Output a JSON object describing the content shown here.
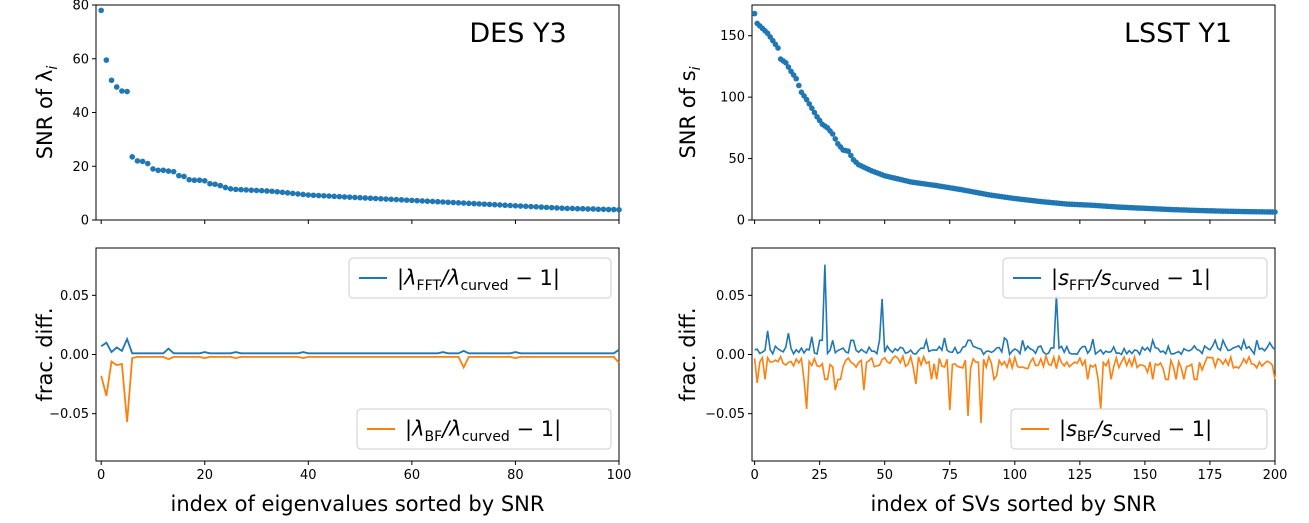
{
  "chart_data": [
    {
      "id": "des_top",
      "type": "scatter",
      "annotation": "DES Y3",
      "ylabel": "SNR of λ",
      "ylabel_sub": "i",
      "xlabel": "",
      "xlim": [
        -1,
        100
      ],
      "ylim": [
        0,
        80
      ],
      "xticks": [
        0,
        20,
        40,
        60,
        80,
        100
      ],
      "xtick_labels_shown": false,
      "yticks": [
        0,
        20,
        40,
        60,
        80
      ],
      "ytick_labels": [
        "0",
        "20",
        "40",
        "60",
        "80"
      ],
      "color": "#1f77b4",
      "series": [
        {
          "values_desc": "see points"
        }
      ],
      "points": [
        [
          0,
          78
        ],
        [
          1,
          59.5
        ],
        [
          2,
          52
        ],
        [
          3,
          49.5
        ],
        [
          4,
          48
        ],
        [
          5,
          47.8
        ],
        [
          6,
          23.5
        ],
        [
          7,
          22
        ],
        [
          8,
          21.8
        ],
        [
          9,
          21
        ],
        [
          10,
          19
        ],
        [
          11,
          18.5
        ],
        [
          12,
          18.5
        ],
        [
          13,
          18.2
        ],
        [
          14,
          18
        ],
        [
          15,
          16.5
        ],
        [
          16,
          16.2
        ],
        [
          17,
          15
        ],
        [
          18,
          14.8
        ],
        [
          19,
          14.8
        ],
        [
          20,
          14.6
        ],
        [
          21,
          13.5
        ],
        [
          22,
          13.3
        ],
        [
          23,
          12.8
        ],
        [
          24,
          12.1
        ],
        [
          25,
          11.6
        ],
        [
          26,
          11.4
        ],
        [
          27,
          11.3
        ],
        [
          28,
          11.2
        ],
        [
          29,
          11.1
        ],
        [
          30,
          11
        ],
        [
          31,
          10.9
        ],
        [
          32,
          10.8
        ],
        [
          33,
          10.7
        ],
        [
          34,
          10.5
        ],
        [
          35,
          10.3
        ],
        [
          36,
          10.1
        ],
        [
          37,
          9.9
        ],
        [
          38,
          9.7
        ],
        [
          39,
          9.5
        ],
        [
          40,
          9.3
        ],
        [
          41,
          9.2
        ],
        [
          42,
          9.1
        ],
        [
          43,
          9
        ],
        [
          44,
          8.9
        ],
        [
          45,
          8.8
        ],
        [
          46,
          8.7
        ],
        [
          47,
          8.6
        ],
        [
          48,
          8.5
        ],
        [
          49,
          8.4
        ],
        [
          50,
          8.3
        ],
        [
          51,
          8.2
        ],
        [
          52,
          8.1
        ],
        [
          53,
          8
        ],
        [
          54,
          7.9
        ],
        [
          55,
          7.8
        ],
        [
          56,
          7.7
        ],
        [
          57,
          7.6
        ],
        [
          58,
          7.5
        ],
        [
          59,
          7.4
        ],
        [
          60,
          7.3
        ],
        [
          61,
          7.2
        ],
        [
          62,
          7.1
        ],
        [
          63,
          7
        ],
        [
          64,
          6.9
        ],
        [
          65,
          6.8
        ],
        [
          66,
          6.7
        ],
        [
          67,
          6.6
        ],
        [
          68,
          6.5
        ],
        [
          69,
          6.4
        ],
        [
          70,
          6.3
        ],
        [
          71,
          6.2
        ],
        [
          72,
          6.1
        ],
        [
          73,
          6
        ],
        [
          74,
          5.9
        ],
        [
          75,
          5.8
        ],
        [
          76,
          5.7
        ],
        [
          77,
          5.6
        ],
        [
          78,
          5.5
        ],
        [
          79,
          5.4
        ],
        [
          80,
          5.3
        ],
        [
          81,
          5.2
        ],
        [
          82,
          5.1
        ],
        [
          83,
          5
        ],
        [
          84,
          4.9
        ],
        [
          85,
          4.8
        ],
        [
          86,
          4.7
        ],
        [
          87,
          4.6
        ],
        [
          88,
          4.5
        ],
        [
          89,
          4.4
        ],
        [
          90,
          4.3
        ],
        [
          91,
          4.3
        ],
        [
          92,
          4.2
        ],
        [
          93,
          4.2
        ],
        [
          94,
          4.1
        ],
        [
          95,
          4.1
        ],
        [
          96,
          4
        ],
        [
          97,
          4
        ],
        [
          98,
          3.9
        ],
        [
          99,
          3.9
        ],
        [
          100,
          3.8
        ]
      ]
    },
    {
      "id": "lsst_top",
      "type": "scatter",
      "annotation": "LSST Y1",
      "ylabel": "SNR of s",
      "ylabel_sub": "i",
      "xlabel": "",
      "xlim": [
        -1,
        200
      ],
      "ylim": [
        0,
        175
      ],
      "xticks": [
        0,
        25,
        50,
        75,
        100,
        125,
        150,
        175,
        200
      ],
      "xtick_labels_shown": false,
      "yticks": [
        0,
        50,
        100,
        150
      ],
      "ytick_labels": [
        "0",
        "50",
        "100",
        "150"
      ],
      "color": "#1f77b4",
      "curve_anchors": [
        [
          0,
          168
        ],
        [
          1,
          160
        ],
        [
          3,
          156
        ],
        [
          5,
          152
        ],
        [
          7,
          146
        ],
        [
          9,
          140
        ],
        [
          10,
          131
        ],
        [
          12,
          128
        ],
        [
          14,
          121
        ],
        [
          16,
          115
        ],
        [
          18,
          104
        ],
        [
          20,
          98
        ],
        [
          22,
          91
        ],
        [
          24,
          84
        ],
        [
          26,
          78
        ],
        [
          28,
          75
        ],
        [
          30,
          70
        ],
        [
          32,
          62
        ],
        [
          34,
          57
        ],
        [
          36,
          56
        ],
        [
          38,
          49
        ],
        [
          40,
          45
        ],
        [
          45,
          40
        ],
        [
          50,
          36
        ],
        [
          60,
          31
        ],
        [
          70,
          28
        ],
        [
          80,
          24.5
        ],
        [
          90,
          20.5
        ],
        [
          100,
          17.5
        ],
        [
          110,
          15
        ],
        [
          120,
          13
        ],
        [
          130,
          12
        ],
        [
          140,
          10.5
        ],
        [
          150,
          9.5
        ],
        [
          160,
          8.5
        ],
        [
          170,
          7.8
        ],
        [
          180,
          7.2
        ],
        [
          190,
          6.8
        ],
        [
          200,
          6.5
        ]
      ]
    },
    {
      "id": "des_bottom",
      "type": "line",
      "ylabel": "frac. diff.",
      "xlabel": "index of eigenvalues sorted by SNR",
      "xlim": [
        -1,
        100
      ],
      "ylim": [
        -0.09,
        0.09
      ],
      "xticks": [
        0,
        20,
        40,
        60,
        80,
        100
      ],
      "xtick_labels": [
        "0",
        "20",
        "40",
        "60",
        "80",
        "100"
      ],
      "yticks": [
        -0.05,
        0,
        0.05
      ],
      "ytick_labels": [
        "−0.05",
        "0.00",
        "0.05"
      ],
      "legend_top": {
        "text": "|λ",
        "sub1": "FFT",
        "mid": "/λ",
        "sub2": "curved",
        "end": " − 1|",
        "color": "#1f77b4",
        "placement": "upper right"
      },
      "legend_bottom": {
        "text": "|λ",
        "sub1": "BF",
        "mid": "/λ",
        "sub2": "curved",
        "end": " − 1|",
        "color": "#ff7f0e",
        "placement": "lower right"
      },
      "series": [
        {
          "key": "fft",
          "color": "#1f77b4",
          "x": [
            0,
            1,
            2,
            3,
            4,
            5,
            6,
            7,
            8,
            9,
            10,
            11,
            12,
            13,
            14,
            15,
            16,
            17,
            18,
            19,
            20,
            21,
            22,
            23,
            24,
            25,
            26,
            27,
            28,
            29,
            30,
            31,
            32,
            33,
            34,
            35,
            36,
            37,
            38,
            39,
            40,
            41,
            42,
            43,
            44,
            45,
            46,
            47,
            48,
            49,
            50,
            51,
            52,
            53,
            54,
            55,
            56,
            57,
            58,
            59,
            60,
            61,
            62,
            63,
            64,
            65,
            66,
            67,
            68,
            69,
            70,
            71,
            72,
            73,
            74,
            75,
            76,
            77,
            78,
            79,
            80,
            81,
            82,
            83,
            84,
            85,
            86,
            87,
            88,
            89,
            90,
            91,
            92,
            93,
            94,
            95,
            96,
            97,
            98,
            99,
            100
          ],
          "y": [
            0.007,
            0.01,
            0.002,
            0.006,
            0.003,
            0.013,
            0.001,
            0.001,
            0.001,
            0.001,
            0.001,
            0.001,
            0.001,
            0.005,
            0.001,
            0.001,
            0.001,
            0.001,
            0.001,
            0.001,
            0.002,
            0.001,
            0.001,
            0.001,
            0.001,
            0.001,
            0.002,
            0.001,
            0.001,
            0.001,
            0.001,
            0.001,
            0.001,
            0.001,
            0.001,
            0.001,
            0.001,
            0.001,
            0.001,
            0.002,
            0.001,
            0.001,
            0.001,
            0.001,
            0.001,
            0.001,
            0.001,
            0.001,
            0.001,
            0.001,
            0.001,
            0.001,
            0.001,
            0.001,
            0.001,
            0.001,
            0.001,
            0.001,
            0.001,
            0.001,
            0.001,
            0.001,
            0.001,
            0.001,
            0.001,
            0.001,
            0.002,
            0.001,
            0.001,
            0.001,
            0.003,
            0.001,
            0.001,
            0.001,
            0.001,
            0.001,
            0.001,
            0.001,
            0.001,
            0.001,
            0.002,
            0.001,
            0.001,
            0.001,
            0.001,
            0.001,
            0.001,
            0.001,
            0.001,
            0.001,
            0.001,
            0.001,
            0.001,
            0.001,
            0.001,
            0.001,
            0.001,
            0.001,
            0.001,
            0.001,
            0.004
          ]
        },
        {
          "key": "bf",
          "color": "#ff7f0e",
          "x": [
            0,
            1,
            2,
            3,
            4,
            5,
            6,
            7,
            8,
            9,
            10,
            11,
            12,
            13,
            14,
            15,
            16,
            17,
            18,
            19,
            20,
            21,
            22,
            23,
            24,
            25,
            26,
            27,
            28,
            29,
            30,
            31,
            32,
            33,
            34,
            35,
            36,
            37,
            38,
            39,
            40,
            41,
            42,
            43,
            44,
            45,
            46,
            47,
            48,
            49,
            50,
            51,
            52,
            53,
            54,
            55,
            56,
            57,
            58,
            59,
            60,
            61,
            62,
            63,
            64,
            65,
            66,
            67,
            68,
            69,
            70,
            71,
            72,
            73,
            74,
            75,
            76,
            77,
            78,
            79,
            80,
            81,
            82,
            83,
            84,
            85,
            86,
            87,
            88,
            89,
            90,
            91,
            92,
            93,
            94,
            95,
            96,
            97,
            98,
            99,
            100
          ],
          "y": [
            -0.018,
            -0.035,
            -0.006,
            -0.009,
            -0.008,
            -0.057,
            -0.003,
            -0.002,
            -0.002,
            -0.002,
            -0.002,
            -0.002,
            -0.002,
            -0.004,
            -0.002,
            -0.002,
            -0.002,
            -0.002,
            -0.002,
            -0.002,
            -0.003,
            -0.002,
            -0.002,
            -0.002,
            -0.002,
            -0.002,
            -0.003,
            -0.002,
            -0.002,
            -0.002,
            -0.002,
            -0.002,
            -0.002,
            -0.002,
            -0.002,
            -0.002,
            -0.002,
            -0.002,
            -0.002,
            -0.003,
            -0.002,
            -0.002,
            -0.002,
            -0.002,
            -0.002,
            -0.002,
            -0.002,
            -0.002,
            -0.002,
            -0.002,
            -0.002,
            -0.002,
            -0.002,
            -0.002,
            -0.002,
            -0.002,
            -0.002,
            -0.002,
            -0.002,
            -0.002,
            -0.002,
            -0.002,
            -0.002,
            -0.002,
            -0.002,
            -0.002,
            -0.002,
            -0.002,
            -0.002,
            -0.002,
            -0.011,
            -0.002,
            -0.002,
            -0.002,
            -0.002,
            -0.002,
            -0.002,
            -0.002,
            -0.002,
            -0.002,
            -0.003,
            -0.002,
            -0.002,
            -0.002,
            -0.002,
            -0.002,
            -0.002,
            -0.002,
            -0.002,
            -0.002,
            -0.002,
            -0.002,
            -0.002,
            -0.002,
            -0.002,
            -0.002,
            -0.002,
            -0.002,
            -0.002,
            -0.002,
            -0.007
          ]
        }
      ]
    },
    {
      "id": "lsst_bottom",
      "type": "line",
      "ylabel": "frac. diff.",
      "xlabel": "index of SVs sorted by SNR",
      "xlim": [
        -1,
        200
      ],
      "ylim": [
        -0.09,
        0.09
      ],
      "xticks": [
        0,
        25,
        50,
        75,
        100,
        125,
        150,
        175,
        200
      ],
      "xtick_labels": [
        "0",
        "25",
        "50",
        "75",
        "100",
        "125",
        "150",
        "175",
        "200"
      ],
      "yticks": [
        -0.05,
        0,
        0.05
      ],
      "ytick_labels": [
        "−0.05",
        "0.00",
        "0.05"
      ],
      "legend_top": {
        "text": "|s",
        "sub1": "FFT",
        "mid": "/s",
        "sub2": "curved",
        "end": " − 1|",
        "color": "#1f77b4",
        "placement": "upper right"
      },
      "legend_bottom": {
        "text": "|s",
        "sub1": "BF",
        "mid": "/s",
        "sub2": "curved",
        "end": " − 1|",
        "color": "#ff7f0e",
        "placement": "lower right"
      },
      "fft_spikes": [
        [
          27,
          0.076
        ],
        [
          49,
          0.047
        ],
        [
          116,
          0.05
        ],
        [
          5,
          0.02
        ],
        [
          13,
          0.018
        ],
        [
          22,
          0.015
        ],
        [
          38,
          0.012
        ],
        [
          73,
          0.014
        ],
        [
          96,
          0.014
        ],
        [
          130,
          0.013
        ],
        [
          177,
          0.012
        ],
        [
          198,
          0.01
        ]
      ],
      "bf_spikes": [
        [
          1,
          -0.024
        ],
        [
          20,
          -0.046
        ],
        [
          31,
          -0.03
        ],
        [
          42,
          -0.03
        ],
        [
          62,
          -0.025
        ],
        [
          75,
          -0.047
        ],
        [
          82,
          -0.052
        ],
        [
          87,
          -0.058
        ],
        [
          93,
          -0.018
        ],
        [
          133,
          -0.046
        ],
        [
          151,
          -0.015
        ],
        [
          172,
          -0.013
        ]
      ],
      "series": [
        {
          "key": "fft",
          "color": "#1f77b4",
          "baseline": 0.004,
          "noise": 0.004
        },
        {
          "key": "bf",
          "color": "#ff7f0e",
          "baseline": -0.006,
          "noise": 0.006
        }
      ]
    }
  ]
}
